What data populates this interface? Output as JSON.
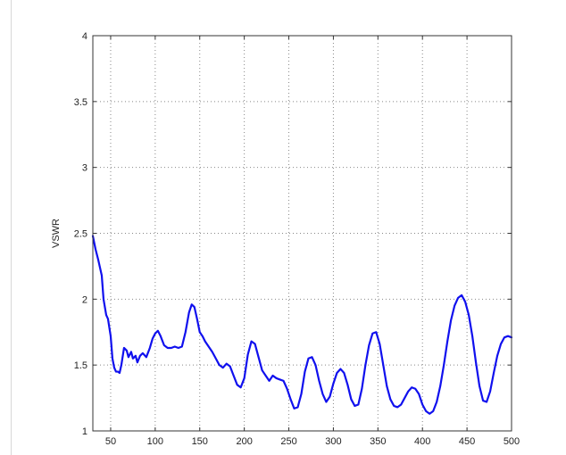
{
  "chart_data": {
    "type": "line",
    "title": "",
    "xlabel": "",
    "ylabel": "VSWR",
    "xlim": [
      30,
      500
    ],
    "ylim": [
      1,
      4
    ],
    "xticks": [
      50,
      100,
      150,
      200,
      250,
      300,
      350,
      400,
      450,
      500
    ],
    "yticks": [
      1,
      1.5,
      2,
      2.5,
      3,
      3.5,
      4
    ],
    "ytick_labels": [
      "1",
      "1.5",
      "2",
      "2.5",
      "3",
      "3.5",
      "4"
    ],
    "grid": true,
    "line_color": "#1010ee",
    "series": [
      {
        "name": "",
        "x": [
          30,
          33,
          36,
          40,
          42,
          45,
          47,
          50,
          52,
          54,
          56,
          58,
          60,
          62,
          65,
          68,
          70,
          73,
          75,
          78,
          80,
          83,
          86,
          90,
          94,
          97,
          100,
          103,
          106,
          110,
          114,
          118,
          122,
          126,
          130,
          134,
          138,
          141,
          144,
          147,
          150,
          153,
          156,
          160,
          164,
          168,
          172,
          176,
          180,
          184,
          188,
          192,
          196,
          200,
          204,
          208,
          212,
          216,
          220,
          224,
          228,
          232,
          236,
          240,
          244,
          248,
          252,
          256,
          260,
          264,
          268,
          272,
          276,
          280,
          284,
          288,
          292,
          296,
          300,
          304,
          308,
          312,
          316,
          320,
          324,
          328,
          332,
          336,
          340,
          344,
          348,
          352,
          356,
          360,
          364,
          368,
          372,
          376,
          380,
          384,
          388,
          392,
          396,
          400,
          404,
          408,
          412,
          416,
          420,
          424,
          428,
          432,
          436,
          440,
          444,
          448,
          452,
          456,
          460,
          464,
          468,
          472,
          476,
          480,
          484,
          488,
          492,
          496,
          500
        ],
        "values": [
          2.48,
          2.38,
          2.3,
          2.18,
          2.0,
          1.88,
          1.85,
          1.72,
          1.55,
          1.48,
          1.45,
          1.45,
          1.44,
          1.5,
          1.63,
          1.61,
          1.56,
          1.6,
          1.55,
          1.57,
          1.52,
          1.57,
          1.59,
          1.56,
          1.63,
          1.7,
          1.74,
          1.76,
          1.72,
          1.65,
          1.63,
          1.63,
          1.64,
          1.63,
          1.64,
          1.75,
          1.9,
          1.96,
          1.94,
          1.85,
          1.75,
          1.72,
          1.68,
          1.64,
          1.6,
          1.55,
          1.5,
          1.48,
          1.51,
          1.49,
          1.42,
          1.35,
          1.33,
          1.4,
          1.58,
          1.68,
          1.66,
          1.56,
          1.46,
          1.42,
          1.38,
          1.42,
          1.4,
          1.39,
          1.38,
          1.32,
          1.24,
          1.17,
          1.18,
          1.28,
          1.45,
          1.55,
          1.56,
          1.5,
          1.38,
          1.28,
          1.22,
          1.26,
          1.36,
          1.44,
          1.47,
          1.44,
          1.35,
          1.24,
          1.19,
          1.2,
          1.32,
          1.5,
          1.65,
          1.74,
          1.75,
          1.66,
          1.5,
          1.34,
          1.24,
          1.19,
          1.18,
          1.2,
          1.25,
          1.3,
          1.33,
          1.32,
          1.28,
          1.2,
          1.15,
          1.13,
          1.15,
          1.22,
          1.34,
          1.5,
          1.68,
          1.84,
          1.95,
          2.01,
          2.03,
          1.98,
          1.88,
          1.72,
          1.52,
          1.34,
          1.23,
          1.22,
          1.3,
          1.44,
          1.57,
          1.66,
          1.71,
          1.72,
          1.71
        ]
      }
    ]
  }
}
